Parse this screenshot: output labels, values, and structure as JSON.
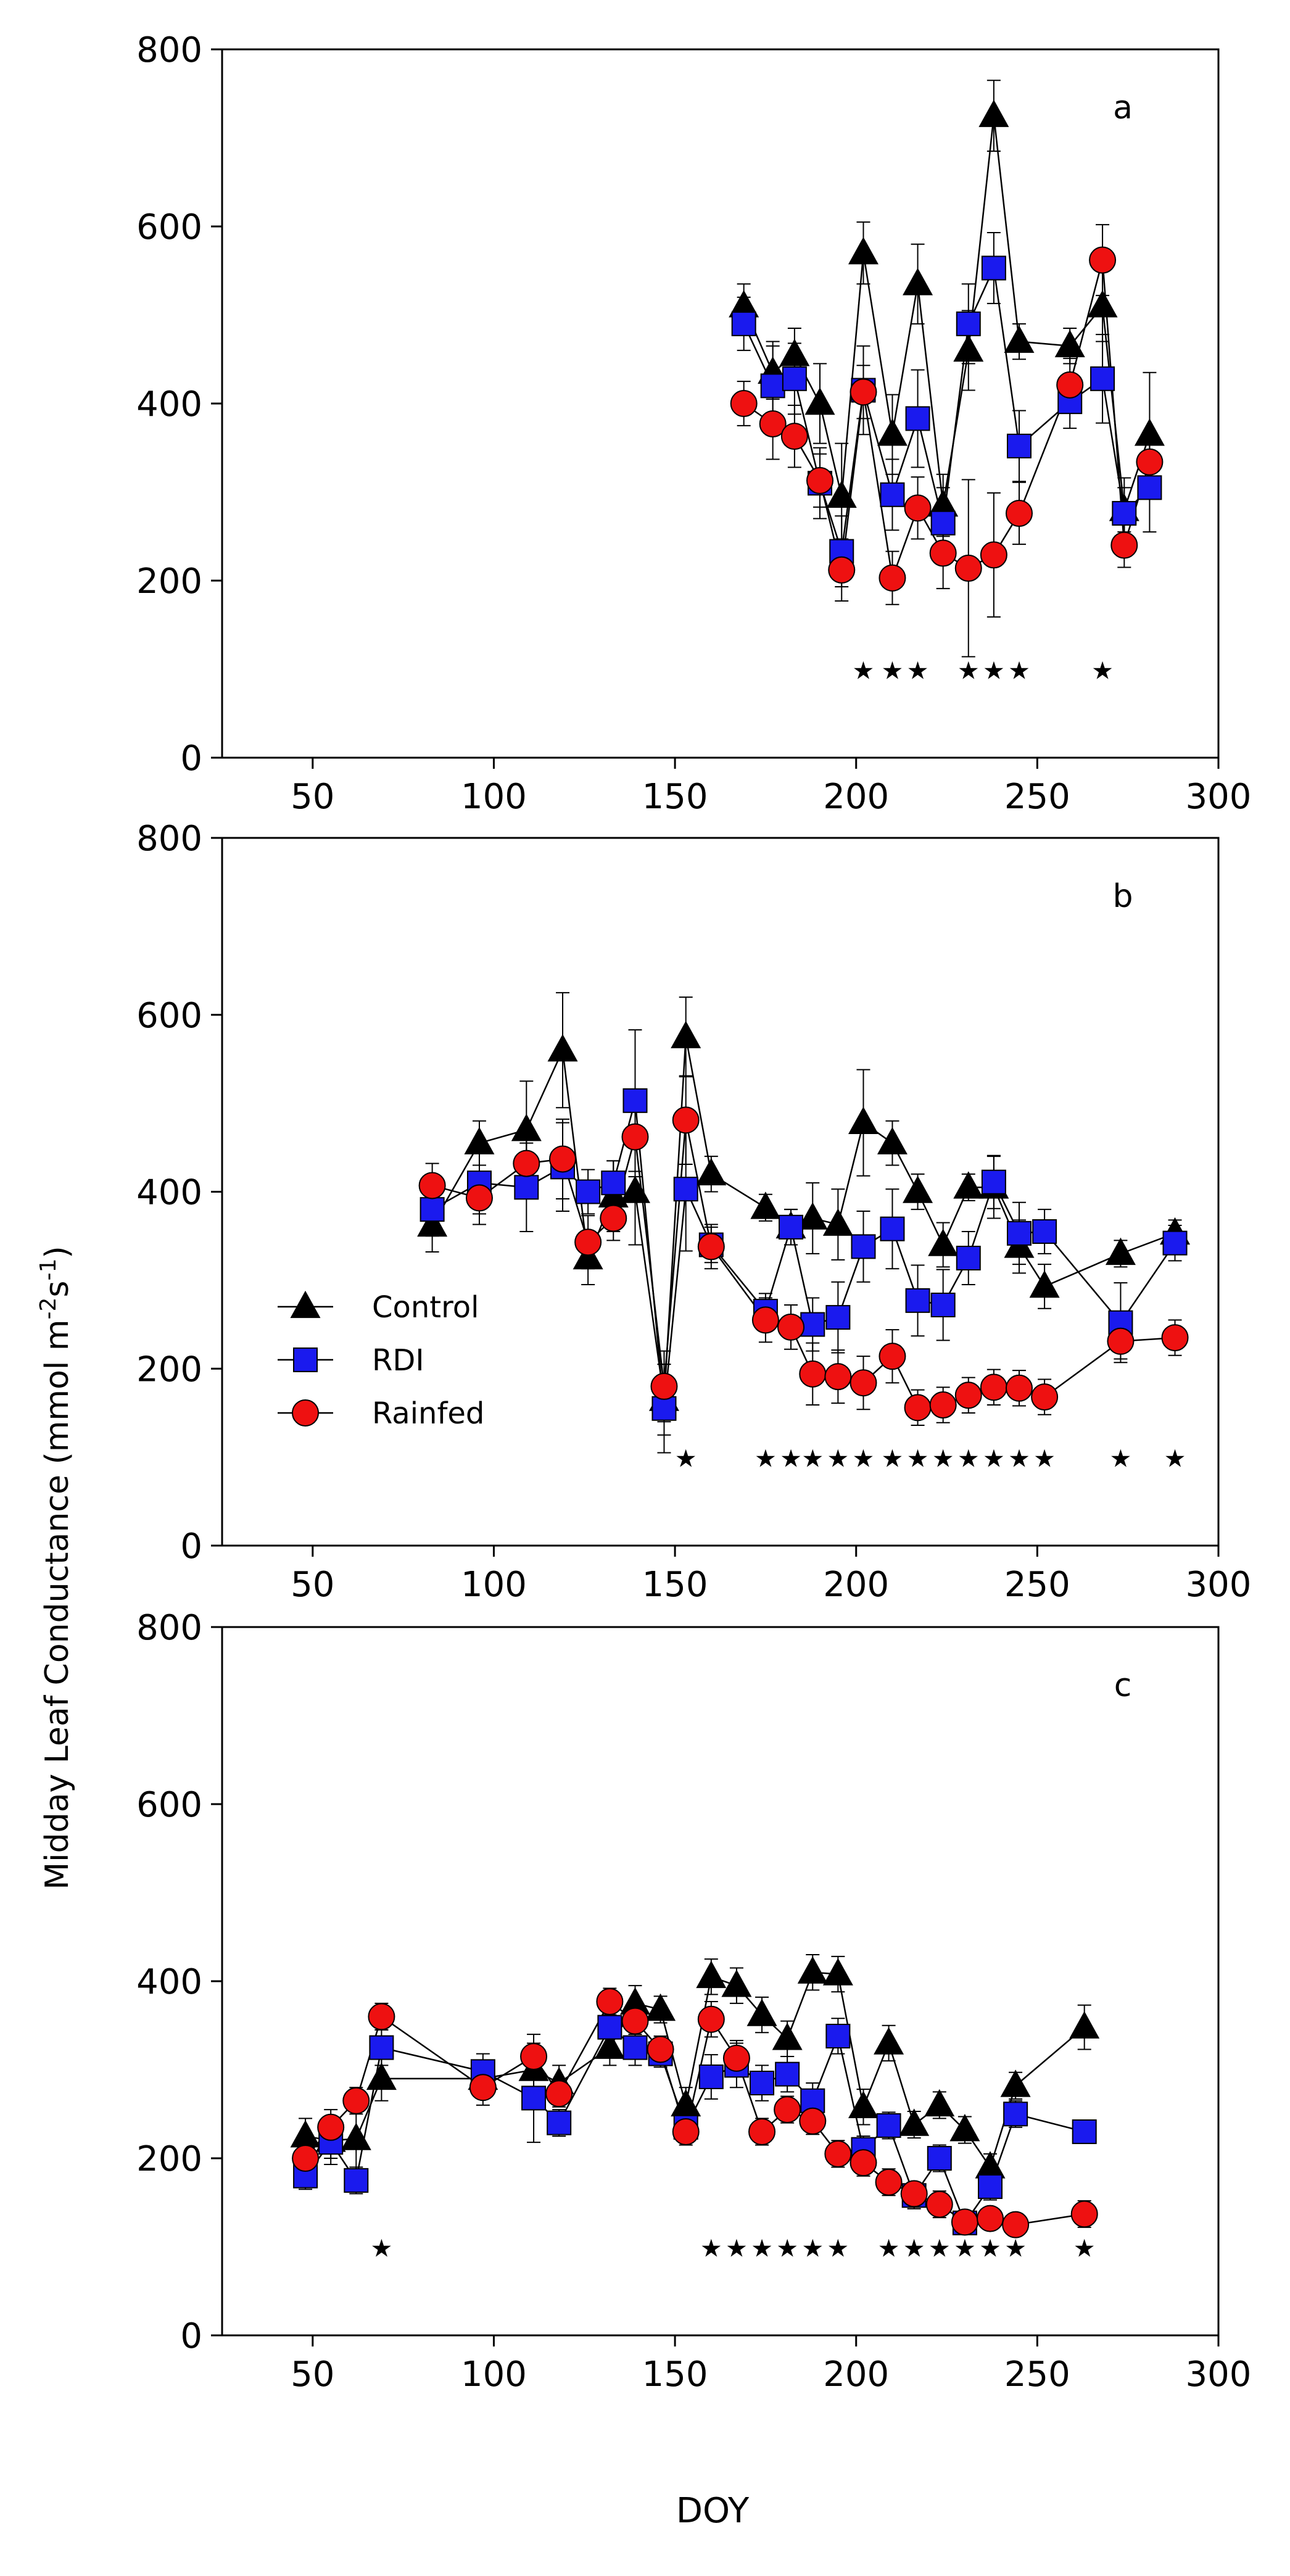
{
  "figure": {
    "ylabel": "Midday Leaf Conductance (mmol m-2 s-1)",
    "ylabel_parts": {
      "main": "Midday Leaf Conductance (mmol m",
      "sup1": "-2",
      "mid": "s",
      "sup2": "-1",
      "end": ")"
    },
    "xlabel": "DOY",
    "legend_entries": [
      "Control",
      "RDI",
      "Rainfed"
    ],
    "colors": {
      "control": "#000000",
      "rdi": "#1a1aee",
      "rainfed": "#ee1111",
      "errorbar": "#000000",
      "axis": "#000000"
    }
  },
  "chart_data": [
    {
      "type": "line",
      "panel_label": "a",
      "xlim": [
        25,
        300
      ],
      "ylim": [
        0,
        800
      ],
      "xticks": [
        50,
        100,
        150,
        200,
        250,
        300
      ],
      "yticks": [
        0,
        200,
        400,
        600,
        800
      ],
      "series": [
        {
          "name": "Control",
          "marker": "triangle",
          "x": [
            169,
            177,
            183,
            190,
            196,
            202,
            210,
            217,
            224,
            231,
            238,
            245,
            259,
            268,
            274,
            281
          ],
          "y": [
            510,
            435,
            455,
            400,
            295,
            570,
            365,
            535,
            285,
            460,
            725,
            470,
            465,
            510,
            280,
            365
          ],
          "err": [
            25,
            30,
            30,
            45,
            60,
            35,
            45,
            45,
            35,
            45,
            40,
            20,
            20,
            40,
            25,
            70
          ]
        },
        {
          "name": "RDI",
          "marker": "square",
          "x": [
            169,
            177,
            183,
            190,
            196,
            202,
            210,
            217,
            224,
            231,
            238,
            245,
            259,
            268,
            274,
            281
          ],
          "y": [
            490,
            420,
            428,
            310,
            233,
            415,
            297,
            383,
            265,
            490,
            553,
            352,
            402,
            428,
            276,
            305
          ],
          "err": [
            30,
            50,
            40,
            40,
            40,
            50,
            40,
            55,
            40,
            45,
            40,
            40,
            30,
            50,
            40,
            50
          ]
        },
        {
          "name": "Rainfed",
          "marker": "circle",
          "x": [
            169,
            177,
            183,
            190,
            196,
            202,
            210,
            217,
            224,
            231,
            238,
            245,
            259,
            268,
            274,
            281
          ],
          "y": [
            400,
            377,
            363,
            313,
            212,
            413,
            203,
            282,
            231,
            214,
            229,
            276,
            421,
            562,
            240,
            334
          ],
          "err": [
            25,
            40,
            35,
            30,
            35,
            30,
            30,
            35,
            40,
            100,
            70,
            35,
            30,
            40,
            25,
            30
          ]
        }
      ],
      "significance_x": [
        202,
        210,
        217,
        231,
        238,
        245,
        268
      ],
      "significance_marker": "★"
    },
    {
      "type": "line",
      "panel_label": "b",
      "xlim": [
        25,
        300
      ],
      "ylim": [
        0,
        800
      ],
      "xticks": [
        50,
        100,
        150,
        200,
        250,
        300
      ],
      "yticks": [
        0,
        200,
        400,
        600,
        800
      ],
      "series": [
        {
          "name": "Control",
          "marker": "triangle",
          "x": [
            83,
            96,
            109,
            119,
            126,
            133,
            139,
            147,
            153,
            160,
            175,
            182,
            188,
            195,
            202,
            210,
            217,
            224,
            231,
            238,
            245,
            252,
            273,
            288
          ],
          "y": [
            362,
            455,
            470,
            560,
            325,
            395,
            400,
            165,
            575,
            420,
            382,
            360,
            370,
            363,
            478,
            455,
            400,
            340,
            405,
            405,
            338,
            293,
            330,
            353
          ],
          "err": [
            30,
            25,
            55,
            65,
            30,
            40,
            60,
            40,
            45,
            20,
            15,
            20,
            40,
            40,
            60,
            25,
            20,
            25,
            15,
            35,
            30,
            25,
            15,
            15
          ]
        },
        {
          "name": "RDI",
          "marker": "square",
          "x": [
            83,
            96,
            109,
            119,
            126,
            133,
            139,
            147,
            153,
            160,
            175,
            182,
            188,
            195,
            202,
            210,
            217,
            224,
            231,
            238,
            245,
            252,
            273,
            288
          ],
          "y": [
            380,
            410,
            405,
            428,
            400,
            410,
            503,
            155,
            403,
            340,
            265,
            360,
            250,
            258,
            338,
            358,
            277,
            272,
            325,
            411,
            353,
            355,
            252,
            342
          ],
          "err": [
            30,
            35,
            50,
            50,
            25,
            25,
            80,
            50,
            70,
            20,
            20,
            20,
            30,
            40,
            40,
            45,
            40,
            40,
            30,
            30,
            35,
            25,
            45,
            20
          ]
        },
        {
          "name": "Rainfed",
          "marker": "circle",
          "x": [
            83,
            96,
            109,
            119,
            126,
            133,
            139,
            147,
            153,
            160,
            175,
            182,
            188,
            195,
            202,
            210,
            217,
            224,
            231,
            238,
            245,
            252,
            273,
            288
          ],
          "y": [
            407,
            393,
            432,
            437,
            343,
            370,
            462,
            180,
            481,
            338,
            255,
            247,
            194,
            191,
            184,
            214,
            156,
            159,
            170,
            179,
            178,
            168,
            231,
            235
          ],
          "err": [
            25,
            30,
            40,
            45,
            30,
            25,
            45,
            40,
            50,
            25,
            25,
            25,
            35,
            30,
            30,
            30,
            20,
            20,
            20,
            20,
            20,
            20,
            20,
            20
          ]
        }
      ],
      "significance_x": [
        153,
        175,
        182,
        188,
        195,
        202,
        210,
        217,
        224,
        231,
        238,
        245,
        252,
        273,
        288
      ],
      "significance_marker": "★"
    },
    {
      "type": "line",
      "panel_label": "c",
      "xlim": [
        25,
        300
      ],
      "ylim": [
        0,
        800
      ],
      "xticks": [
        50,
        100,
        150,
        200,
        250,
        300
      ],
      "yticks": [
        0,
        200,
        400,
        600,
        800
      ],
      "series": [
        {
          "name": "Control",
          "marker": "triangle",
          "x": [
            48,
            55,
            62,
            69,
            97,
            111,
            118,
            132,
            139,
            146,
            153,
            160,
            167,
            174,
            181,
            188,
            195,
            202,
            209,
            216,
            223,
            230,
            237,
            244,
            263
          ],
          "y": [
            225,
            220,
            222,
            290,
            290,
            300,
            285,
            325,
            375,
            368,
            260,
            405,
            395,
            362,
            335,
            410,
            408,
            258,
            330,
            238,
            260,
            232,
            190,
            282,
            348
          ],
          "err": [
            20,
            20,
            40,
            25,
            20,
            40,
            20,
            20,
            20,
            15,
            20,
            20,
            20,
            20,
            20,
            20,
            20,
            20,
            20,
            15,
            15,
            15,
            15,
            15,
            25
          ]
        },
        {
          "name": "RDI",
          "marker": "square",
          "x": [
            48,
            55,
            62,
            69,
            97,
            111,
            118,
            132,
            139,
            146,
            153,
            160,
            167,
            174,
            181,
            188,
            195,
            202,
            209,
            216,
            223,
            230,
            237,
            244,
            263
          ],
          "y": [
            180,
            218,
            175,
            325,
            298,
            268,
            240,
            348,
            325,
            318,
            235,
            292,
            305,
            285,
            295,
            265,
            338,
            210,
            237,
            158,
            200,
            127,
            168,
            250,
            230
          ],
          "err": [
            15,
            25,
            15,
            20,
            20,
            50,
            15,
            20,
            20,
            15,
            15,
            25,
            25,
            20,
            20,
            20,
            20,
            15,
            15,
            15,
            15,
            10,
            15,
            15,
            10
          ]
        },
        {
          "name": "Rainfed",
          "marker": "circle",
          "x": [
            48,
            55,
            62,
            69,
            97,
            111,
            118,
            132,
            139,
            146,
            153,
            160,
            167,
            174,
            181,
            188,
            195,
            202,
            209,
            216,
            223,
            230,
            237,
            244,
            263
          ],
          "y": [
            200,
            235,
            265,
            360,
            280,
            315,
            273,
            377,
            355,
            323,
            230,
            357,
            313,
            230,
            255,
            242,
            205,
            195,
            173,
            160,
            148,
            128,
            132,
            125,
            137
          ],
          "err": [
            20,
            20,
            15,
            15,
            20,
            15,
            15,
            15,
            15,
            15,
            15,
            20,
            20,
            15,
            15,
            15,
            15,
            15,
            15,
            10,
            15,
            10,
            10,
            10,
            15
          ]
        }
      ],
      "significance_x": [
        69,
        160,
        167,
        174,
        181,
        188,
        195,
        209,
        216,
        223,
        230,
        237,
        244,
        263
      ],
      "significance_marker": "★"
    }
  ]
}
